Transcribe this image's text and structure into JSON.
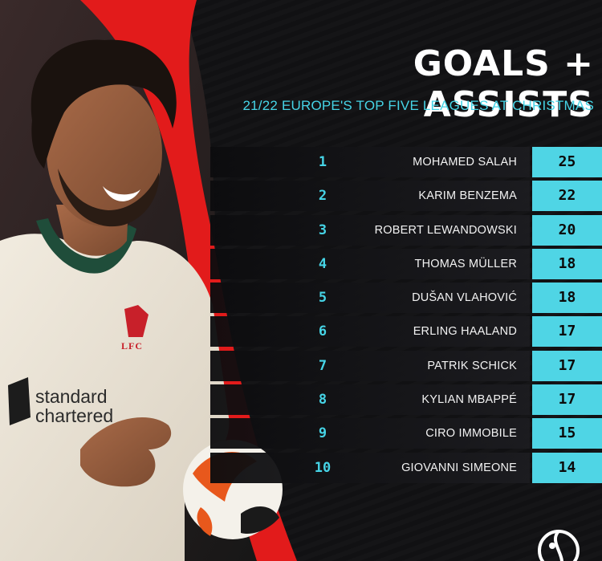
{
  "header": {
    "title": "GOALS + ASSISTS",
    "subtitle": "21/22 EUROPE'S TOP FIVE LEAGUES AT CHRISTMAS"
  },
  "photo": {
    "jersey_club_text": "LFC",
    "sponsor_text": "standard chartered"
  },
  "colors": {
    "accent": "#4fd5e5",
    "red_stripe": "#e21b1b",
    "background": "#111113"
  },
  "rankings": [
    {
      "rank": "1",
      "player": "MOHAMED SALAH",
      "value": "25"
    },
    {
      "rank": "2",
      "player": "KARIM BENZEMA",
      "value": "22"
    },
    {
      "rank": "3",
      "player": "ROBERT LEWANDOWSKI",
      "value": "20"
    },
    {
      "rank": "4",
      "player": "THOMAS MÜLLER",
      "value": "18"
    },
    {
      "rank": "5",
      "player": "DUŠAN VLAHOVIĆ",
      "value": "18"
    },
    {
      "rank": "6",
      "player": "ERLING HAALAND",
      "value": "17"
    },
    {
      "rank": "7",
      "player": "PATRIK SCHICK",
      "value": "17"
    },
    {
      "rank": "8",
      "player": "KYLIAN MBAPPÉ",
      "value": "17"
    },
    {
      "rank": "9",
      "player": "CIRO IMMOBILE",
      "value": "15"
    },
    {
      "rank": "10",
      "player": "GIOVANNI SIMEONE",
      "value": "14"
    }
  ],
  "logo_icon": "brand-logo-icon"
}
